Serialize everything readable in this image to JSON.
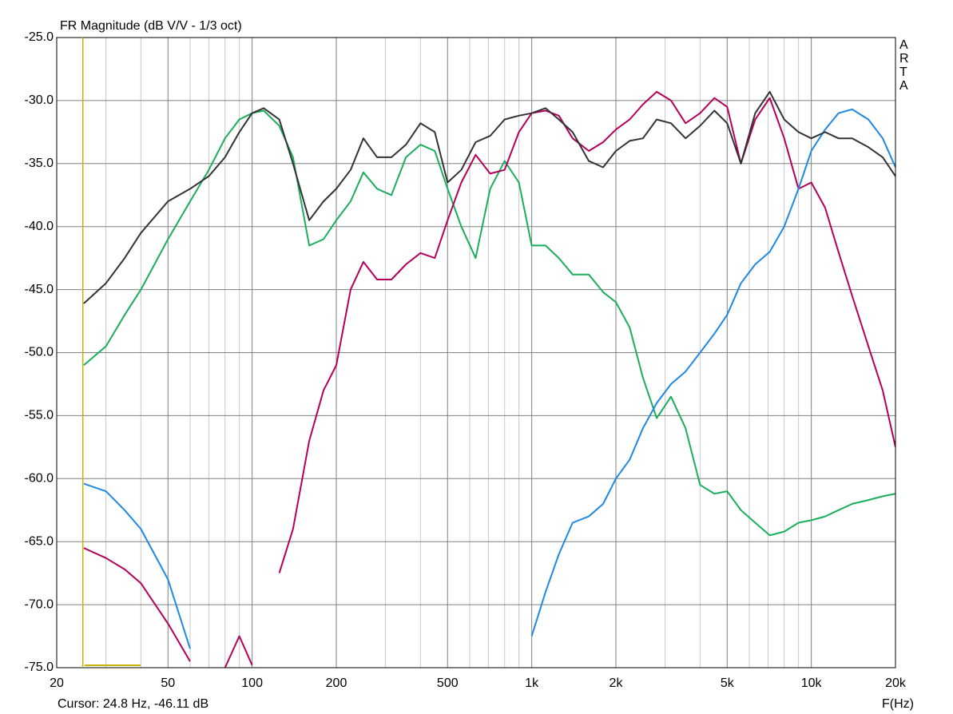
{
  "chart_data": {
    "type": "line",
    "title": "FR Magnitude (dB V/V - 1/3 oct)",
    "side_label": "ARTA",
    "x_label": "F(Hz)",
    "cursor_label": "Cursor: 24.8 Hz, -46.11 dB",
    "cursor_x": 24.8,
    "xscale": "log",
    "grid": true,
    "xlim": [
      20,
      20000
    ],
    "ylim": [
      -75,
      -25
    ],
    "xticks": [
      20,
      50,
      100,
      200,
      500,
      {
        "value": 1000,
        "label": "1k"
      },
      {
        "value": 2000,
        "label": "2k"
      },
      {
        "value": 5000,
        "label": "5k"
      },
      {
        "value": 10000,
        "label": "10k"
      },
      {
        "value": 20000,
        "label": "20k"
      }
    ],
    "xminorticks": [
      30,
      40,
      60,
      70,
      80,
      90,
      300,
      400,
      600,
      700,
      800,
      900,
      3000,
      4000,
      6000,
      7000,
      8000,
      9000
    ],
    "yticks": [
      {
        "value": -75,
        "label": "-75.0"
      },
      {
        "value": -70,
        "label": "-70.0"
      },
      {
        "value": -65,
        "label": "-65.0"
      },
      {
        "value": -60,
        "label": "-60.0"
      },
      {
        "value": -55,
        "label": "-55.0"
      },
      {
        "value": -50,
        "label": "-50.0"
      },
      {
        "value": -45,
        "label": "-45.0"
      },
      {
        "value": -40,
        "label": "-40.0"
      },
      {
        "value": -35,
        "label": "-35.0"
      },
      {
        "value": -30,
        "label": "-30.0"
      },
      {
        "value": -25,
        "label": "-25.0"
      }
    ],
    "x": [
      25,
      30,
      35,
      40,
      50,
      60,
      70,
      80,
      90,
      100,
      110,
      125,
      140,
      160,
      180,
      200,
      225,
      250,
      280,
      315,
      355,
      400,
      450,
      500,
      560,
      630,
      710,
      800,
      900,
      1000,
      1120,
      1250,
      1400,
      1600,
      1800,
      2000,
      2240,
      2500,
      2800,
      3150,
      3550,
      4000,
      4500,
      5000,
      5600,
      6300,
      7100,
      8000,
      9000,
      10000,
      11200,
      12500,
      14000,
      16000,
      18000,
      20000
    ],
    "series": [
      {
        "color": "#1aae5c",
        "values": [
          -51,
          -49.5,
          -47,
          -45,
          -41,
          -38,
          -35.5,
          -33,
          -31.5,
          -31,
          -30.8,
          -32,
          -34.5,
          -41.5,
          -41,
          -39.5,
          -38,
          -35.7,
          -37,
          -37.5,
          -34.5,
          -33.5,
          -34,
          -37,
          -40,
          -42.5,
          -37,
          -34.8,
          -36.5,
          -41.5,
          -41.5,
          -42.5,
          -43.8,
          -43.8,
          -45.2,
          -46,
          -48,
          -52,
          -55.2,
          -53.5,
          -56,
          -60.5,
          -61.2,
          -61,
          -62.5,
          -63.5,
          -64.5,
          -64.2,
          -63.5,
          -63.3,
          -63,
          -62.5,
          -62,
          -61.7,
          -61.4,
          -61.2
        ]
      },
      {
        "color": "#b5005b",
        "values": [
          -65.5,
          -66.3,
          -67.2,
          -68.3,
          -71.5,
          -74.5,
          null,
          -75,
          -72.5,
          -74.8,
          null,
          -67.5,
          -64,
          -57,
          -53,
          -51,
          -45,
          -42.8,
          -44.2,
          -44.2,
          -43,
          -42.1,
          -42.5,
          -39.5,
          -36.5,
          -34.3,
          -35.8,
          -35.5,
          -32.5,
          -31,
          -30.8,
          -31.2,
          -33,
          -34,
          -33.3,
          -32.3,
          -31.5,
          -30.3,
          -29.3,
          -30,
          -31.8,
          -31,
          -29.8,
          -30.5,
          -35,
          -31.5,
          -29.8,
          -33,
          -37,
          -36.5,
          -38.5,
          -42,
          -45.5,
          -49.5,
          -53,
          -57.5
        ]
      },
      {
        "color": "#1e88e5",
        "values": [
          -60.4,
          -61,
          -62.5,
          -64,
          -68,
          -73.5,
          null,
          null,
          null,
          null,
          null,
          null,
          null,
          null,
          null,
          null,
          null,
          null,
          null,
          null,
          null,
          null,
          null,
          null,
          null,
          null,
          null,
          null,
          null,
          -72.5,
          -69,
          -66,
          -63.5,
          -63,
          -62,
          -60,
          -58.5,
          -56,
          -54,
          -52.5,
          -51.5,
          -50,
          -48.5,
          -47,
          -44.5,
          -43,
          -42,
          -40,
          -37,
          -34,
          -32.3,
          -31,
          -30.7,
          -31.5,
          -33,
          -35.3
        ]
      },
      {
        "color": "#333333",
        "values": [
          -46.1,
          -44.5,
          -42.5,
          -40.5,
          -38,
          -37,
          -36,
          -34.5,
          -32.5,
          -31,
          -30.6,
          -31.5,
          -35,
          -39.5,
          -38,
          -37,
          -35.5,
          -33,
          -34.5,
          -34.5,
          -33.5,
          -31.8,
          -32.5,
          -36.5,
          -35.5,
          -33.3,
          -32.8,
          -31.5,
          -31.2,
          -31,
          -30.6,
          -31.5,
          -32.5,
          -34.8,
          -35.3,
          -34,
          -33.2,
          -33,
          -31.5,
          -31.8,
          -33,
          -32,
          -30.8,
          -31.8,
          -35,
          -31,
          -29.3,
          -31.5,
          -32.5,
          -33,
          -32.5,
          -33,
          -33,
          -33.7,
          -34.5,
          -36
        ]
      }
    ]
  }
}
